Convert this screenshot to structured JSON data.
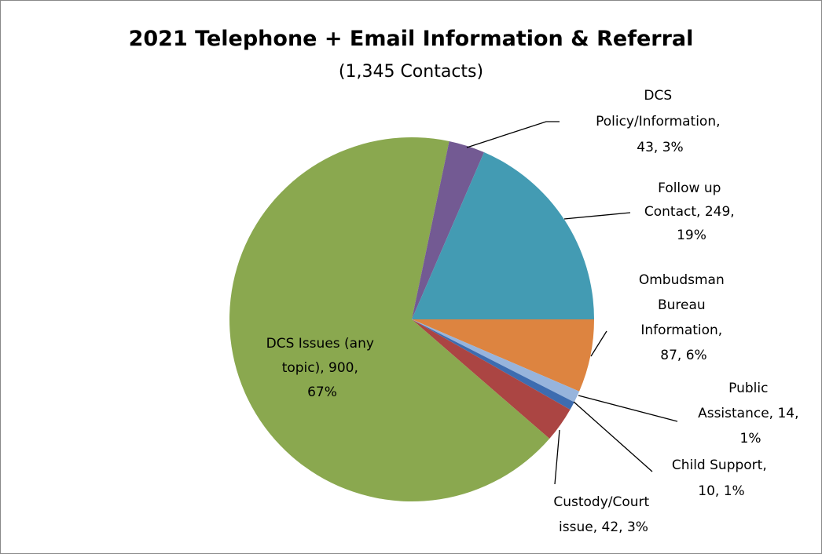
{
  "chart_data": {
    "type": "pie",
    "title": "2021 Telephone + Email Information & Referral",
    "subtitle": "(1,345 Contacts)",
    "start_angle": 90,
    "categories": [
      "Ombudsman Bureau Information",
      "Public Assistance",
      "Child Support",
      "Custody/Court issue",
      "DCS Issues (any topic)",
      "DCS Policy/Information",
      "Follow up Contact"
    ],
    "values": [
      87,
      14,
      10,
      42,
      900,
      43,
      249
    ],
    "value_labels": [
      "Ombudsman Bureau Information, 87, 6%",
      "Public Assistance, 14, 1%",
      "Child Support, 10, 1%",
      "Custody/Court issue, 42, 3%",
      "DCS Issues (any topic), 900, 67%",
      "DCS Policy/Information, 43, 3%",
      "Follow up Contact, 249, 19%"
    ],
    "colors": [
      "#dd8440",
      "#97b4dc",
      "#3d6cb0",
      "#ab4543",
      "#8aa84f",
      "#735a93",
      "#439bb3"
    ]
  }
}
